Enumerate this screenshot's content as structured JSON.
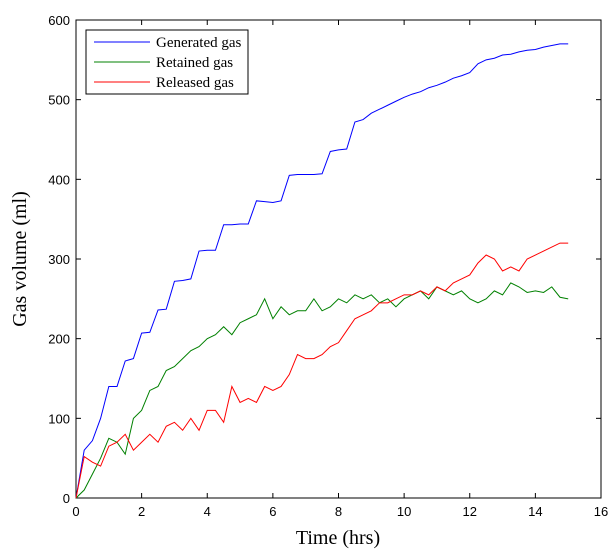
{
  "chart_data": {
    "type": "line",
    "x_label": "Time (hrs)",
    "y_label": "Gas volume (ml)",
    "x": [
      0,
      0.25,
      0.5,
      0.75,
      1,
      1.25,
      1.5,
      1.75,
      2,
      2.25,
      2.5,
      2.75,
      3,
      3.25,
      3.5,
      3.75,
      4,
      4.25,
      4.5,
      4.75,
      5,
      5.25,
      5.5,
      5.75,
      6,
      6.25,
      6.5,
      6.75,
      7,
      7.25,
      7.5,
      7.75,
      8,
      8.25,
      8.5,
      8.75,
      9,
      9.25,
      9.5,
      9.75,
      10,
      10.25,
      10.5,
      10.75,
      11,
      11.25,
      11.5,
      11.75,
      12,
      12.25,
      12.5,
      12.75,
      13,
      13.25,
      13.5,
      13.75,
      14,
      14.25,
      14.5,
      14.75,
      15
    ],
    "series": [
      {
        "name": "Generated gas",
        "color": "#0000ff",
        "values": [
          0,
          60,
          72,
          100,
          140,
          140,
          172,
          175,
          207,
          208,
          236,
          237,
          272,
          273,
          275,
          310,
          311,
          311,
          343,
          343,
          344,
          344,
          373,
          372,
          371,
          373,
          405,
          406,
          406,
          406,
          407,
          435,
          437,
          438,
          472,
          475,
          483,
          488,
          493,
          498,
          503,
          507,
          510,
          515,
          518,
          522,
          527,
          530,
          534,
          545,
          550,
          552,
          556,
          557,
          560,
          562,
          563,
          566,
          568,
          570,
          570
        ]
      },
      {
        "name": "Retained gas",
        "color": "#008000",
        "values": [
          0,
          10,
          30,
          50,
          75,
          70,
          55,
          100,
          110,
          135,
          140,
          160,
          165,
          175,
          185,
          190,
          200,
          205,
          215,
          205,
          220,
          225,
          230,
          250,
          225,
          240,
          230,
          235,
          235,
          250,
          235,
          240,
          250,
          245,
          255,
          250,
          255,
          245,
          250,
          240,
          250,
          255,
          260,
          250,
          265,
          260,
          255,
          260,
          250,
          245,
          250,
          260,
          255,
          270,
          265,
          258,
          260,
          258,
          265,
          252,
          250
        ]
      },
      {
        "name": "Released gas",
        "color": "#ff0000",
        "values": [
          0,
          52,
          45,
          40,
          65,
          70,
          80,
          60,
          70,
          80,
          70,
          90,
          95,
          85,
          100,
          85,
          110,
          110,
          95,
          140,
          120,
          125,
          120,
          140,
          135,
          140,
          155,
          180,
          175,
          175,
          180,
          190,
          195,
          210,
          225,
          230,
          235,
          245,
          245,
          250,
          255,
          255,
          260,
          255,
          265,
          260,
          270,
          275,
          280,
          295,
          305,
          300,
          285,
          290,
          285,
          300,
          305,
          310,
          315,
          320,
          320
        ]
      }
    ],
    "xlim": [
      0,
      16
    ],
    "xticks": [
      0,
      2,
      4,
      6,
      8,
      10,
      12,
      14,
      16
    ],
    "ylim": [
      0,
      600
    ],
    "yticks": [
      0,
      100,
      200,
      300,
      400,
      500,
      600
    ],
    "legend": "upper-left"
  }
}
